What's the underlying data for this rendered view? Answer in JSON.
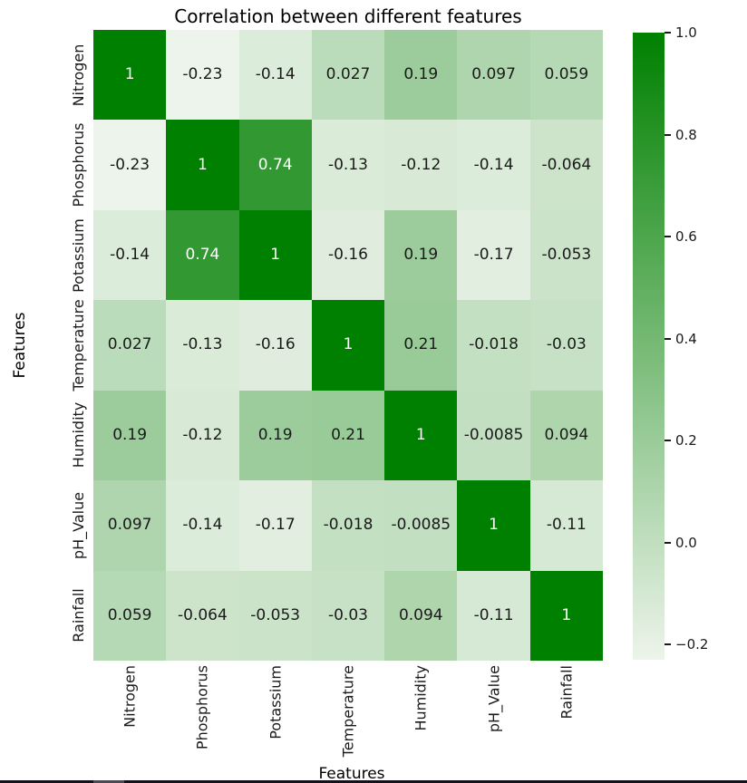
{
  "title": "Correlation between different features",
  "chart_data": {
    "type": "heatmap",
    "title": "Correlation between different features",
    "xlabel": "Features",
    "ylabel": "Features",
    "categories": [
      "Nitrogen",
      "Phosphorus",
      "Potassium",
      "Temperature",
      "Humidity",
      "pH_Value",
      "Rainfall"
    ],
    "matrix": [
      [
        1,
        -0.23,
        -0.14,
        0.027,
        0.19,
        0.097,
        0.059
      ],
      [
        -0.23,
        1,
        0.74,
        -0.13,
        -0.12,
        -0.14,
        -0.064
      ],
      [
        -0.14,
        0.74,
        1,
        -0.16,
        0.19,
        -0.17,
        -0.053
      ],
      [
        0.027,
        -0.13,
        -0.16,
        1,
        0.21,
        -0.018,
        -0.03
      ],
      [
        0.19,
        -0.12,
        0.19,
        0.21,
        1,
        -0.0085,
        0.094
      ],
      [
        0.097,
        -0.14,
        -0.17,
        -0.018,
        -0.0085,
        1,
        -0.11
      ],
      [
        0.059,
        -0.064,
        -0.053,
        -0.03,
        0.094,
        -0.11,
        1
      ]
    ],
    "colormap": {
      "low_color": "#edf4eb",
      "high_color": "#008000",
      "vmin": -0.23,
      "vmax": 1.0
    },
    "colorbar": {
      "position": "right",
      "tick_values": [
        1.0,
        0.8,
        0.6,
        0.4,
        0.2,
        0.0,
        -0.2
      ],
      "tick_labels": [
        "1.0",
        "0.8",
        "0.6",
        "0.4",
        "0.2",
        "0.0",
        "−0.2"
      ]
    },
    "annotation_text_colors": {
      "dark": "#1a1a1a",
      "light": "#ffffff"
    },
    "grid": false
  }
}
